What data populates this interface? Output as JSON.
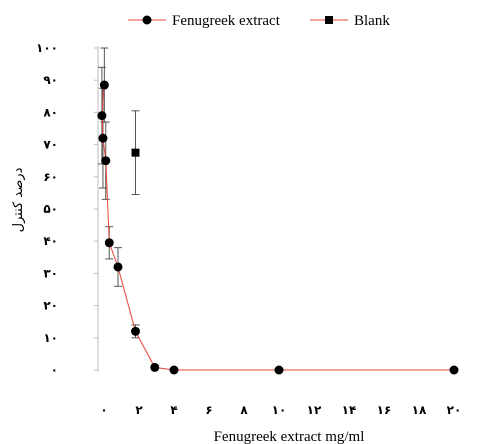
{
  "chart_data": {
    "type": "scatter",
    "title": "",
    "xlabel": "Fenugreek extract mg/ml",
    "ylabel": "درصد کنترل",
    "xlim": [
      0,
      20
    ],
    "ylim": [
      0,
      100
    ],
    "x_ticks": [
      {
        "value": 0,
        "label": "۰"
      },
      {
        "value": 2,
        "label": "۲"
      },
      {
        "value": 4,
        "label": "۴"
      },
      {
        "value": 6,
        "label": "۶"
      },
      {
        "value": 8,
        "label": "۸"
      },
      {
        "value": 10,
        "label": "۱۰"
      },
      {
        "value": 12,
        "label": "۱۲"
      },
      {
        "value": 14,
        "label": "۱۴"
      },
      {
        "value": 16,
        "label": "۱۶"
      },
      {
        "value": 18,
        "label": "۱۸"
      },
      {
        "value": 20,
        "label": "۲۰"
      }
    ],
    "y_ticks": [
      {
        "value": 0,
        "label": "۰"
      },
      {
        "value": 10,
        "label": "۱۰"
      },
      {
        "value": 20,
        "label": "۲۰"
      },
      {
        "value": 30,
        "label": "۳۰"
      },
      {
        "value": 40,
        "label": "۴۰"
      },
      {
        "value": 50,
        "label": "۵۰"
      },
      {
        "value": 60,
        "label": "۶۰"
      },
      {
        "value": 70,
        "label": "۷۰"
      },
      {
        "value": 80,
        "label": "۸۰"
      },
      {
        "value": 90,
        "label": "۹۰"
      },
      {
        "value": 100,
        "label": "۱۰۰"
      }
    ],
    "legend_position": "top",
    "grid": false,
    "series": [
      {
        "name": "Fenugreek extract",
        "marker": "circle",
        "line_color": "#e8423b",
        "marker_color": "#000000",
        "points": [
          {
            "x": 0.02,
            "y": 88.5,
            "err": 11.5
          },
          {
            "x": -0.12,
            "y": 79.0,
            "err": 15
          },
          {
            "x": -0.06,
            "y": 72.0,
            "err": 15.5
          },
          {
            "x": 0.1,
            "y": 65.0,
            "err": 12
          },
          {
            "x": 0.3,
            "y": 39.5,
            "err": 5
          },
          {
            "x": 0.8,
            "y": 32.0,
            "err": 6
          },
          {
            "x": 1.8,
            "y": 12.0,
            "err": 2
          },
          {
            "x": 2.9,
            "y": 0.8,
            "err": 0
          },
          {
            "x": 4.0,
            "y": 0,
            "err": 0
          },
          {
            "x": 10.0,
            "y": 0,
            "err": 0
          },
          {
            "x": 20.0,
            "y": 0,
            "err": 0
          }
        ]
      },
      {
        "name": "Blank",
        "marker": "square",
        "line_color": "#e8423b",
        "marker_color": "#000000",
        "points": [
          {
            "x": 1.8,
            "y": 67.5,
            "err": 13
          }
        ]
      }
    ]
  }
}
